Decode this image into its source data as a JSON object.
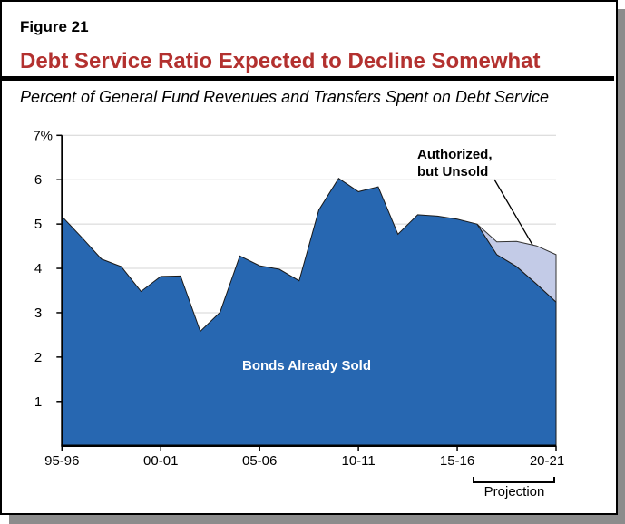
{
  "figure_label": "Figure 21",
  "title": "Debt Service Ratio Expected to Decline Somewhat",
  "subtitle": "Percent of General Fund Revenues and Transfers Spent on Debt Service",
  "colors": {
    "sold": "#2767b1",
    "unsold": "#c3cbe7",
    "title": "#b3312f"
  },
  "chart_data": {
    "type": "area",
    "stacked": true,
    "title": "Debt Service Ratio Expected to Decline Somewhat",
    "subtitle": "Percent of General Fund Revenues and Transfers Spent on Debt Service",
    "x": [
      "95-96",
      "96-97",
      "97-98",
      "98-99",
      "99-00",
      "00-01",
      "01-02",
      "02-03",
      "03-04",
      "04-05",
      "05-06",
      "06-07",
      "07-08",
      "08-09",
      "09-10",
      "10-11",
      "11-12",
      "12-13",
      "13-14",
      "14-15",
      "15-16",
      "16-17",
      "17-18",
      "18-19",
      "19-20",
      "20-21"
    ],
    "x_tick_labels": [
      "95-96",
      "00-01",
      "05-06",
      "10-11",
      "15-16",
      "20-21"
    ],
    "y_tick_labels": [
      "1",
      "2",
      "3",
      "4",
      "5",
      "6",
      "7%"
    ],
    "ylim": [
      0,
      7
    ],
    "grid": true,
    "series": [
      {
        "name": "Bonds Already Sold",
        "values": [
          5.17,
          4.7,
          4.21,
          4.04,
          3.48,
          3.82,
          3.83,
          2.58,
          3.01,
          4.28,
          4.06,
          3.98,
          3.72,
          5.32,
          6.03,
          5.73,
          5.84,
          4.77,
          5.21,
          5.18,
          5.11,
          5.0,
          4.31,
          4.04,
          3.65,
          3.24
        ]
      },
      {
        "name": "Authorized, but Unsold",
        "values": [
          0,
          0,
          0,
          0,
          0,
          0,
          0,
          0,
          0,
          0,
          0,
          0,
          0,
          0,
          0,
          0,
          0,
          0,
          0,
          0,
          0,
          0,
          0.29,
          0.57,
          0.86,
          1.07
        ]
      }
    ],
    "annotations": {
      "sold_label": "Bonds Already Sold",
      "unsold_label_line1": "Authorized,",
      "unsold_label_line2": "but Unsold",
      "projection_label": "Projection",
      "projection_range": [
        "17-18",
        "20-21"
      ]
    }
  }
}
